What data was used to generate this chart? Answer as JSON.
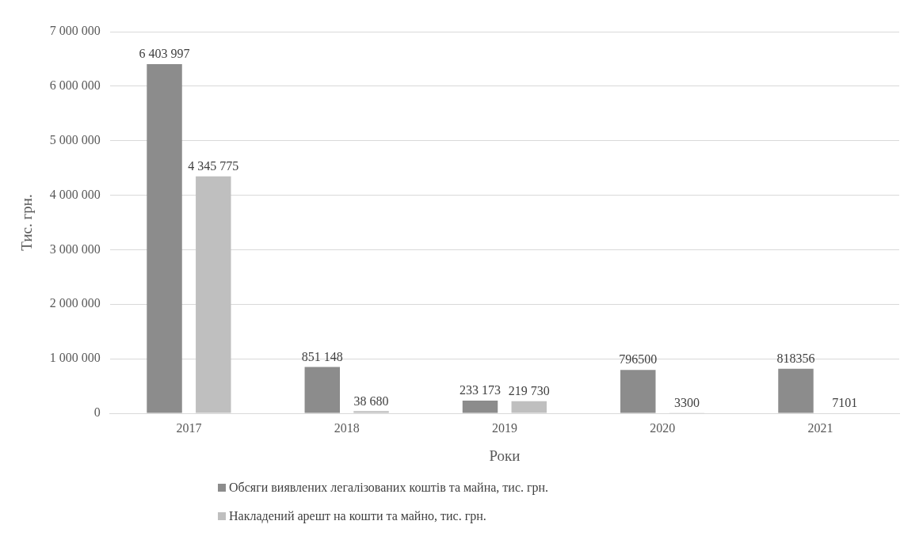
{
  "chart_data": {
    "type": "bar",
    "ylabel": "Тис. грн.",
    "xlabel": "Роки",
    "categories": [
      "2017",
      "2018",
      "2019",
      "2020",
      "2021"
    ],
    "series": [
      {
        "name": "Обсяги виявлених легалізованих коштів та майна, тис. грн.",
        "color": "#8c8c8c",
        "values": [
          6403997,
          851148,
          233173,
          796500,
          818356
        ],
        "value_labels": [
          "6 403 997",
          "851 148",
          "233 173",
          "796500",
          "818356"
        ]
      },
      {
        "name": "Накладений арешт на кошти та майно, тис. грн.",
        "color": "#bfbfbf",
        "values": [
          4345775,
          38680,
          219730,
          3300,
          7101
        ],
        "value_labels": [
          "4 345 775",
          "38 680",
          "219 730",
          "3300",
          "7101"
        ]
      }
    ],
    "ylim": [
      0,
      7000000
    ],
    "yticks": [
      {
        "value": 0,
        "label": "0"
      },
      {
        "value": 1000000,
        "label": "1 000 000"
      },
      {
        "value": 2000000,
        "label": "2 000 000"
      },
      {
        "value": 3000000,
        "label": "3 000 000"
      },
      {
        "value": 4000000,
        "label": "4 000 000"
      },
      {
        "value": 5000000,
        "label": "5 000 000"
      },
      {
        "value": 6000000,
        "label": "6 000 000"
      },
      {
        "value": 7000000,
        "label": "7 000 000"
      }
    ],
    "grid": "y",
    "legend": "bottom"
  }
}
